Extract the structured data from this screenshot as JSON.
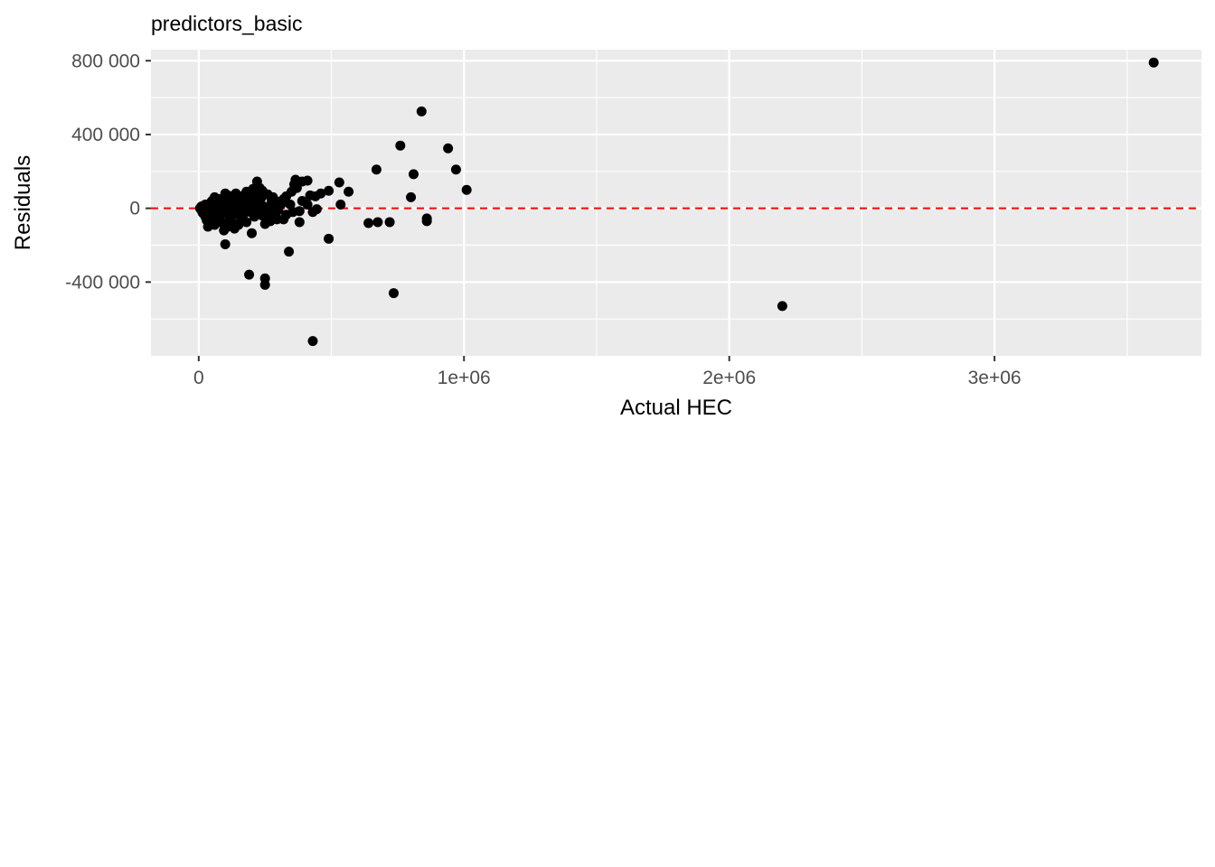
{
  "chart_data": {
    "type": "scatter",
    "title": "predictors_basic",
    "xlabel": "Actual HEC",
    "ylabel": "Residuals",
    "xlim": [
      -180000,
      3780000
    ],
    "ylim": [
      -800000,
      860000
    ],
    "x_ticks": [
      {
        "value": 0,
        "label": "0"
      },
      {
        "value": 1000000,
        "label": "1e+06"
      },
      {
        "value": 2000000,
        "label": "2e+06"
      },
      {
        "value": 3000000,
        "label": "3e+06"
      }
    ],
    "y_ticks": [
      {
        "value": 800000,
        "label": "800 000"
      },
      {
        "value": 400000,
        "label": "400 000"
      },
      {
        "value": 0,
        "label": "0"
      },
      {
        "value": -400000,
        "label": "-400 000"
      }
    ],
    "x_minor": [
      500000,
      1500000,
      2500000,
      3500000
    ],
    "y_minor": [
      600000,
      200000,
      -200000,
      -600000
    ],
    "reference_line": {
      "y": 0,
      "color": "#ff0000",
      "style": "dashed"
    },
    "grid": true,
    "panel_color": "#ebebeb",
    "point_color": "#000000",
    "points": [
      {
        "x": 3600000,
        "y": 790000
      },
      {
        "x": 840000,
        "y": 525000
      },
      {
        "x": 760000,
        "y": 340000
      },
      {
        "x": 940000,
        "y": 325000
      },
      {
        "x": 670000,
        "y": 210000
      },
      {
        "x": 970000,
        "y": 210000
      },
      {
        "x": 810000,
        "y": 185000
      },
      {
        "x": 1010000,
        "y": 100000
      },
      {
        "x": 800000,
        "y": 60000
      },
      {
        "x": 860000,
        "y": -55000
      },
      {
        "x": 860000,
        "y": -70000
      },
      {
        "x": 640000,
        "y": -80000
      },
      {
        "x": 675000,
        "y": -75000
      },
      {
        "x": 720000,
        "y": -75000
      },
      {
        "x": 735000,
        "y": -460000
      },
      {
        "x": 2200000,
        "y": -530000
      },
      {
        "x": 530000,
        "y": 140000
      },
      {
        "x": 565000,
        "y": 90000
      },
      {
        "x": 535000,
        "y": 20000
      },
      {
        "x": 490000,
        "y": 95000
      },
      {
        "x": 460000,
        "y": 80000
      },
      {
        "x": 490000,
        "y": -165000
      },
      {
        "x": 430000,
        "y": -720000
      },
      {
        "x": 340000,
        "y": -235000
      },
      {
        "x": 250000,
        "y": -380000
      },
      {
        "x": 250000,
        "y": -415000
      },
      {
        "x": 190000,
        "y": -360000
      },
      {
        "x": 100000,
        "y": -195000
      },
      {
        "x": 200000,
        "y": -135000
      },
      {
        "x": 380000,
        "y": -75000
      },
      {
        "x": 410000,
        "y": 150000
      },
      {
        "x": 390000,
        "y": 145000
      },
      {
        "x": 365000,
        "y": 155000
      },
      {
        "x": 360000,
        "y": 130000
      },
      {
        "x": 370000,
        "y": 110000
      },
      {
        "x": 350000,
        "y": 90000
      },
      {
        "x": 420000,
        "y": 70000
      },
      {
        "x": 440000,
        "y": 65000
      },
      {
        "x": 410000,
        "y": 20000
      },
      {
        "x": 430000,
        "y": -20000
      },
      {
        "x": 445000,
        "y": -5000
      },
      {
        "x": 380000,
        "y": -15000
      },
      {
        "x": 390000,
        "y": 40000
      },
      {
        "x": 330000,
        "y": 65000
      },
      {
        "x": 320000,
        "y": 50000
      },
      {
        "x": 310000,
        "y": 20000
      },
      {
        "x": 300000,
        "y": -10000
      },
      {
        "x": 330000,
        "y": -35000
      },
      {
        "x": 320000,
        "y": -60000
      },
      {
        "x": 290000,
        "y": -45000
      },
      {
        "x": 270000,
        "y": -70000
      },
      {
        "x": 250000,
        "y": -85000
      },
      {
        "x": 275000,
        "y": 40000
      },
      {
        "x": 260000,
        "y": 75000
      },
      {
        "x": 240000,
        "y": 95000
      },
      {
        "x": 220000,
        "y": 145000
      },
      {
        "x": 230000,
        "y": 110000
      },
      {
        "x": 210000,
        "y": 85000
      },
      {
        "x": 200000,
        "y": 60000
      },
      {
        "x": 190000,
        "y": 30000
      },
      {
        "x": 175000,
        "y": 75000
      },
      {
        "x": 160000,
        "y": 65000
      },
      {
        "x": 150000,
        "y": 40000
      },
      {
        "x": 140000,
        "y": 15000
      },
      {
        "x": 130000,
        "y": 55000
      },
      {
        "x": 120000,
        "y": 30000
      },
      {
        "x": 110000,
        "y": 70000
      },
      {
        "x": 100000,
        "y": 80000
      },
      {
        "x": 95000,
        "y": 45000
      },
      {
        "x": 85000,
        "y": 20000
      },
      {
        "x": 75000,
        "y": 50000
      },
      {
        "x": 65000,
        "y": 35000
      },
      {
        "x": 55000,
        "y": 15000
      },
      {
        "x": 45000,
        "y": 30000
      },
      {
        "x": 35000,
        "y": 10000
      },
      {
        "x": 25000,
        "y": 20000
      },
      {
        "x": 15000,
        "y": 5000
      },
      {
        "x": 5000,
        "y": 0
      },
      {
        "x": 10000,
        "y": -10000
      },
      {
        "x": 20000,
        "y": -20000
      },
      {
        "x": 30000,
        "y": -35000
      },
      {
        "x": 40000,
        "y": -50000
      },
      {
        "x": 50000,
        "y": -60000
      },
      {
        "x": 35000,
        "y": -100000
      },
      {
        "x": 60000,
        "y": -90000
      },
      {
        "x": 70000,
        "y": -70000
      },
      {
        "x": 80000,
        "y": -40000
      },
      {
        "x": 90000,
        "y": -80000
      },
      {
        "x": 95000,
        "y": -120000
      },
      {
        "x": 110000,
        "y": -100000
      },
      {
        "x": 120000,
        "y": -60000
      },
      {
        "x": 135000,
        "y": -110000
      },
      {
        "x": 150000,
        "y": -90000
      },
      {
        "x": 160000,
        "y": -50000
      },
      {
        "x": 170000,
        "y": -30000
      },
      {
        "x": 180000,
        "y": -75000
      },
      {
        "x": 195000,
        "y": -20000
      },
      {
        "x": 210000,
        "y": -45000
      },
      {
        "x": 225000,
        "y": -15000
      },
      {
        "x": 240000,
        "y": -40000
      },
      {
        "x": 255000,
        "y": -5000
      },
      {
        "x": 270000,
        "y": 10000
      },
      {
        "x": 285000,
        "y": -25000
      },
      {
        "x": 300000,
        "y": 35000
      },
      {
        "x": 180000,
        "y": 90000
      },
      {
        "x": 165000,
        "y": 20000
      },
      {
        "x": 145000,
        "y": -30000
      },
      {
        "x": 125000,
        "y": -15000
      },
      {
        "x": 105000,
        "y": 5000
      },
      {
        "x": 90000,
        "y": 25000
      },
      {
        "x": 70000,
        "y": -5000
      },
      {
        "x": 55000,
        "y": -30000
      },
      {
        "x": 45000,
        "y": -75000
      },
      {
        "x": 25000,
        "y": -45000
      },
      {
        "x": 15000,
        "y": -25000
      },
      {
        "x": 60000,
        "y": 60000
      },
      {
        "x": 80000,
        "y": 10000
      },
      {
        "x": 140000,
        "y": 80000
      },
      {
        "x": 235000,
        "y": 55000
      },
      {
        "x": 265000,
        "y": -30000
      },
      {
        "x": 215000,
        "y": 20000
      },
      {
        "x": 185000,
        "y": -5000
      },
      {
        "x": 155000,
        "y": 5000
      },
      {
        "x": 115000,
        "y": -45000
      },
      {
        "x": 75000,
        "y": -55000
      },
      {
        "x": 40000,
        "y": -10000
      },
      {
        "x": 20000,
        "y": 15000
      },
      {
        "x": 10000,
        "y": 10000
      },
      {
        "x": 30000,
        "y": -65000
      },
      {
        "x": 50000,
        "y": 40000
      },
      {
        "x": 100000,
        "y": -25000
      },
      {
        "x": 130000,
        "y": -80000
      },
      {
        "x": 170000,
        "y": 45000
      },
      {
        "x": 205000,
        "y": 105000
      },
      {
        "x": 245000,
        "y": 10000
      },
      {
        "x": 280000,
        "y": 60000
      },
      {
        "x": 295000,
        "y": -60000
      },
      {
        "x": 345000,
        "y": 20000
      },
      {
        "x": 355000,
        "y": -20000
      }
    ]
  }
}
